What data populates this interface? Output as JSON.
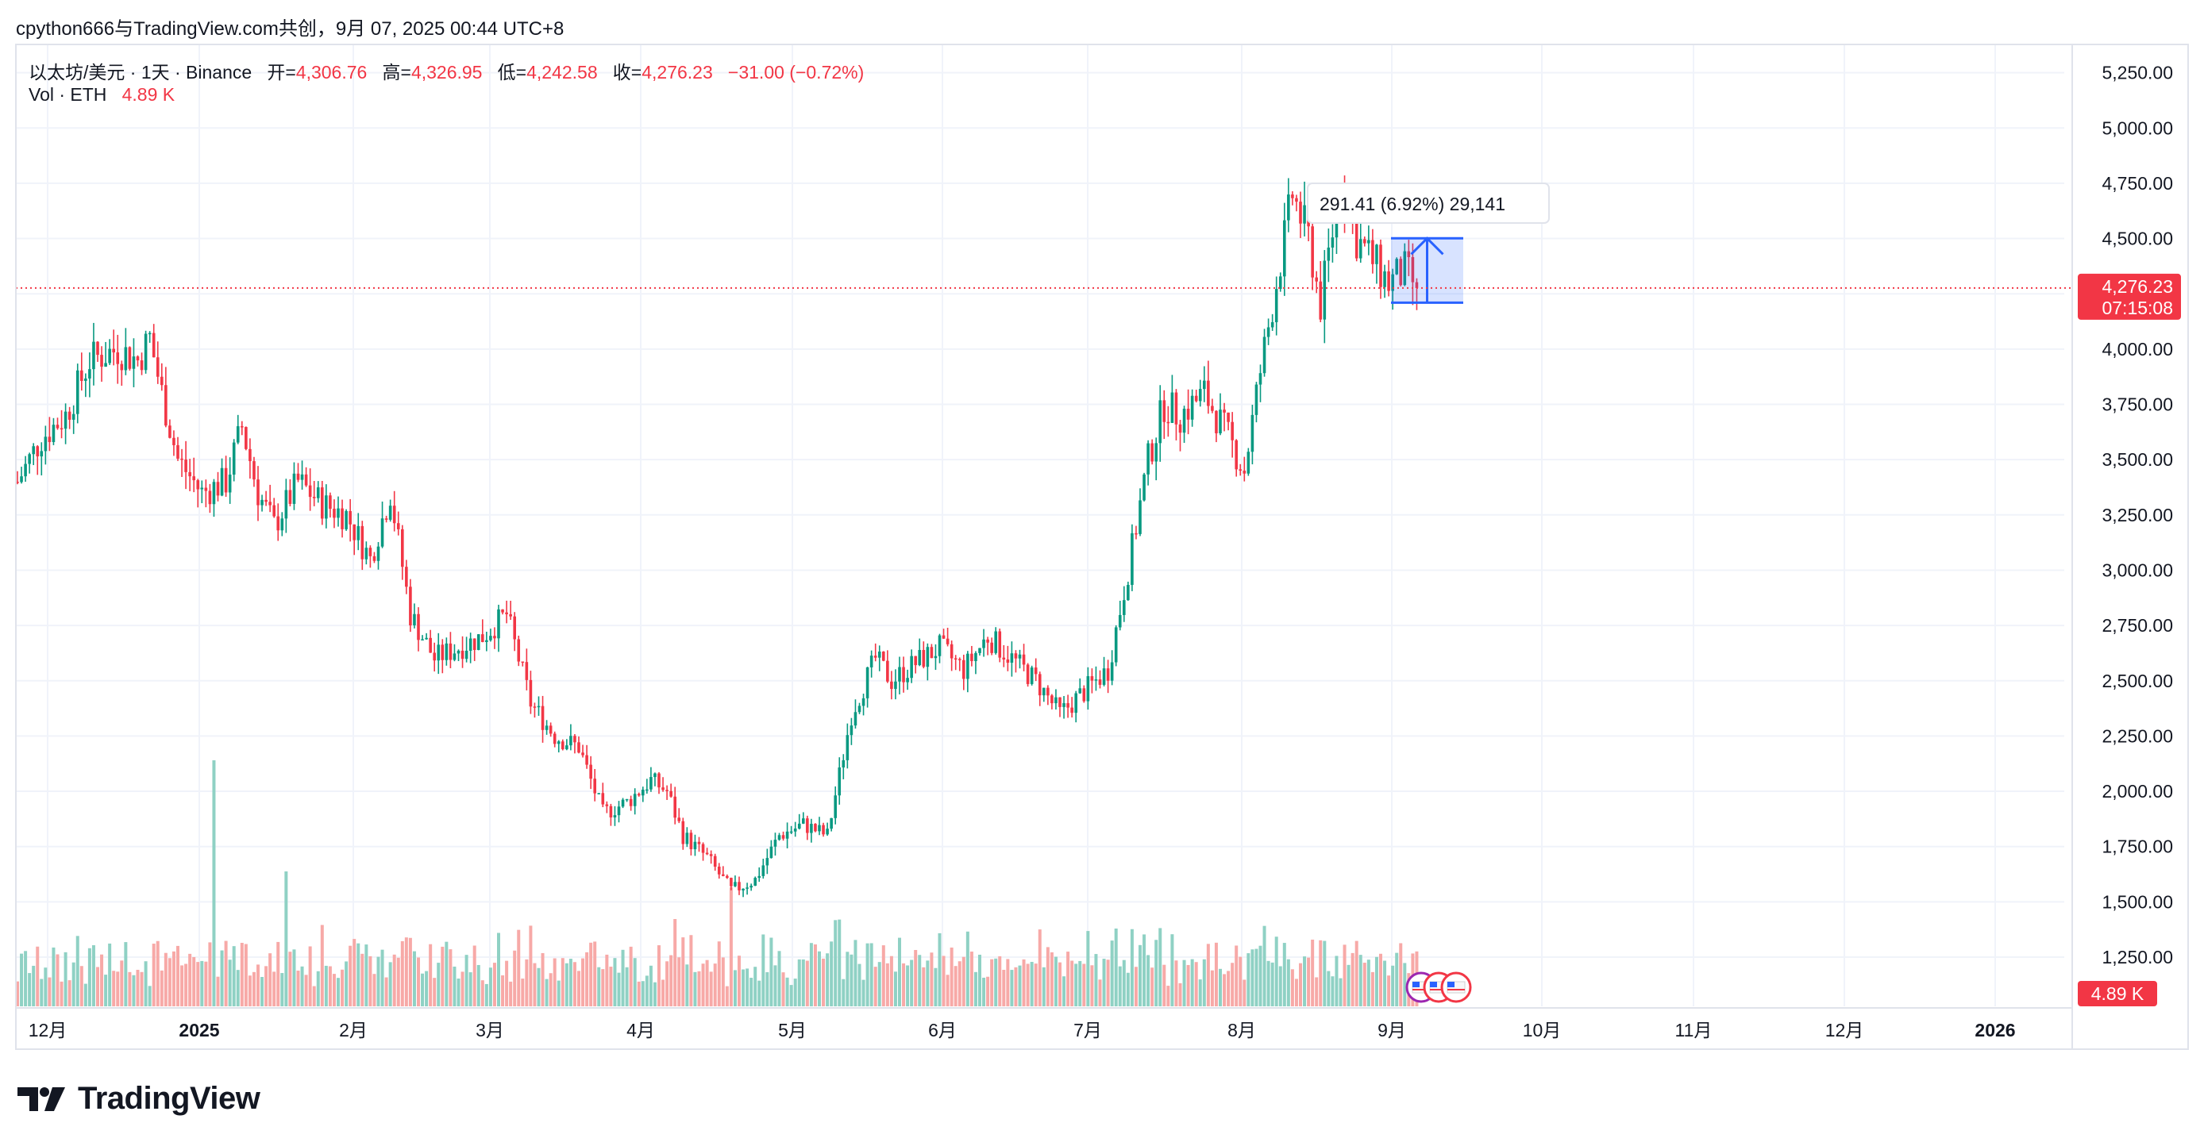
{
  "caption": "cpython666与TradingView.com共创，9月 07, 2025 00:44 UTC+8",
  "brand": "TradingView",
  "legend": {
    "symbol": "以太坊/美元 · 1天 · Binance",
    "open_label": "开=",
    "open": "4,306.76",
    "high_label": "高=",
    "high": "4,326.95",
    "low_label": "低=",
    "low": "4,242.58",
    "close_label": "收=",
    "close": "4,276.23",
    "change": "−31.00 (−0.72%)",
    "vol_label": "Vol · ETH",
    "vol_value": "4.89 K"
  },
  "colors": {
    "up": "#089981",
    "down": "#f23645",
    "vol_up": "#8fd1c4",
    "vol_down": "#f7a9a7",
    "accent": "#2962ff"
  },
  "chart_data": {
    "type": "candlestick",
    "symbol": "ETH/USD",
    "interval": "1D",
    "ylim": [
      1100,
      5350
    ],
    "y_ticks": [
      "1,250.00",
      "1,500.00",
      "1,750.00",
      "2,000.00",
      "2,250.00",
      "2,500.00",
      "2,750.00",
      "3,000.00",
      "3,250.00",
      "3,500.00",
      "3,750.00",
      "4,000.00",
      "4,250.00",
      "4,500.00",
      "4,750.00",
      "5,000.00",
      "5,250.00"
    ],
    "x_ticks": [
      "12月",
      "2025",
      "2月",
      "3月",
      "4月",
      "5月",
      "6月",
      "7月",
      "8月",
      "9月",
      "10月",
      "11月",
      "12月",
      "2026"
    ],
    "last_price": {
      "label": "4,276.23",
      "countdown": "07:15:08",
      "value": 4276.23
    },
    "volume_label": "4.89 K",
    "measure": {
      "text": "291.41 (6.92%) 29,141",
      "from": 4210,
      "to": 4501
    },
    "anchors": [
      [
        0,
        3400
      ],
      [
        6,
        3600
      ],
      [
        12,
        3700
      ],
      [
        18,
        3950
      ],
      [
        25,
        4000
      ],
      [
        30,
        3950
      ],
      [
        33,
        4050
      ],
      [
        36,
        3800
      ],
      [
        40,
        3500
      ],
      [
        46,
        3350
      ],
      [
        52,
        3400
      ],
      [
        56,
        3650
      ],
      [
        60,
        3350
      ],
      [
        64,
        3200
      ],
      [
        70,
        3400
      ],
      [
        76,
        3300
      ],
      [
        82,
        3250
      ],
      [
        88,
        3050
      ],
      [
        93,
        3350
      ],
      [
        98,
        2800
      ],
      [
        104,
        2600
      ],
      [
        110,
        2650
      ],
      [
        116,
        2700
      ],
      [
        122,
        2800
      ],
      [
        128,
        2400
      ],
      [
        134,
        2250
      ],
      [
        140,
        2200
      ],
      [
        146,
        1900
      ],
      [
        152,
        1950
      ],
      [
        158,
        2050
      ],
      [
        162,
        2000
      ],
      [
        166,
        1800
      ],
      [
        172,
        1700
      ],
      [
        178,
        1550
      ],
      [
        184,
        1600
      ],
      [
        190,
        1800
      ],
      [
        196,
        1850
      ],
      [
        202,
        1800
      ],
      [
        208,
        2350
      ],
      [
        214,
        2600
      ],
      [
        218,
        2500
      ],
      [
        224,
        2580
      ],
      [
        230,
        2650
      ],
      [
        236,
        2550
      ],
      [
        242,
        2700
      ],
      [
        248,
        2600
      ],
      [
        254,
        2500
      ],
      [
        260,
        2350
      ],
      [
        266,
        2450
      ],
      [
        272,
        2550
      ],
      [
        277,
        3000
      ],
      [
        282,
        3500
      ],
      [
        286,
        3750
      ],
      [
        290,
        3700
      ],
      [
        296,
        3800
      ],
      [
        302,
        3600
      ],
      [
        306,
        3450
      ],
      [
        310,
        3900
      ],
      [
        314,
        4300
      ],
      [
        318,
        4700
      ],
      [
        322,
        4500
      ],
      [
        325,
        4200
      ],
      [
        330,
        4750
      ],
      [
        334,
        4500
      ],
      [
        338,
        4400
      ],
      [
        342,
        4300
      ],
      [
        346,
        4350
      ],
      [
        349,
        4280
      ]
    ]
  }
}
